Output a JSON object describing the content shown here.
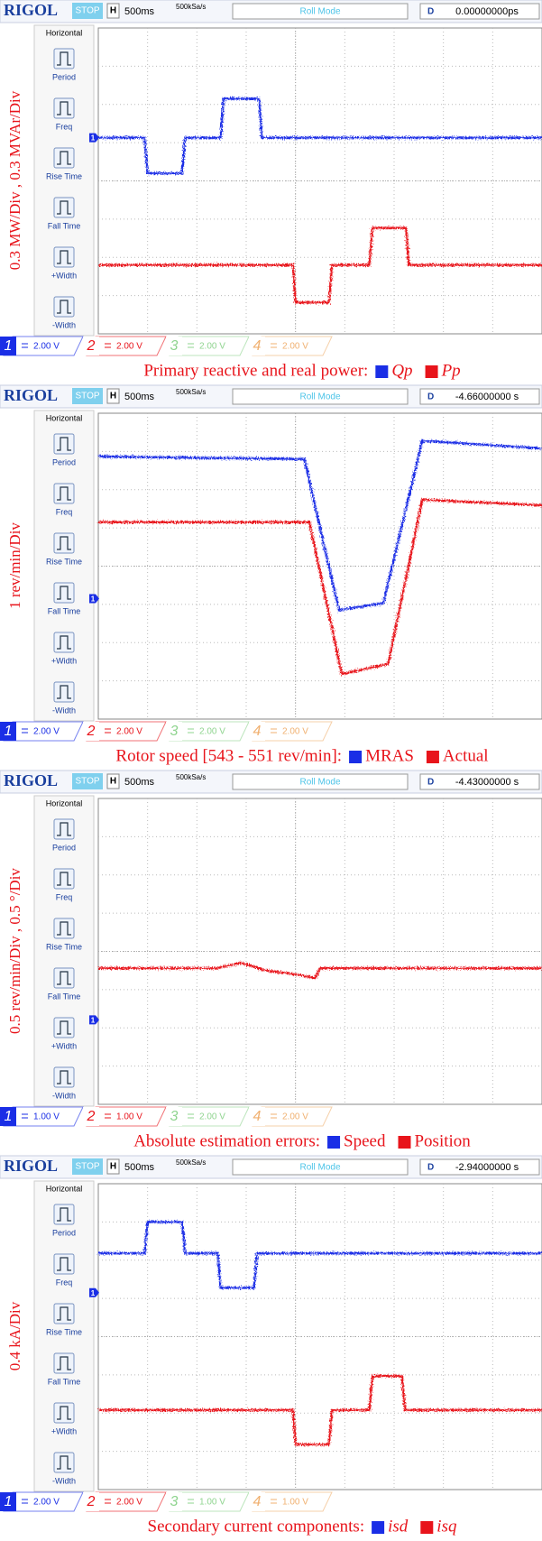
{
  "scope": {
    "brand": "RIGOL",
    "status": "STOP",
    "h_label": "H",
    "timebase": "500ms",
    "sample_rate": "500kSa/s",
    "mode": "Roll Mode",
    "d_label": "D"
  },
  "sidebar": {
    "title": "Horizontal",
    "buttons": [
      "Period",
      "Freq",
      "Rise Time",
      "Fall Time",
      "+Width",
      "-Width"
    ]
  },
  "chart_data": [
    {
      "type": "line",
      "y_label": "0.3 MW/Div , 0.3 MVAr/Div",
      "caption": "Primary reactive and real power:",
      "legend_italic": true,
      "delay": "0.00000000ps",
      "xlim": [
        0,
        9
      ],
      "ylim": [
        -4,
        4
      ],
      "ch1_offset": 1.13,
      "channels": [
        {
          "number": "1",
          "scale": "2.00 V",
          "color": "#1a2ee6"
        },
        {
          "number": "2",
          "scale": "2.00 V",
          "color": "#e8141b"
        },
        {
          "number": "3",
          "scale": "2.00 V",
          "color": "#8fd48f"
        },
        {
          "number": "4",
          "scale": "2.00 V",
          "color": "#f0b070"
        }
      ],
      "series": [
        {
          "name": "Qp",
          "color": "#1a2ee6",
          "x": [
            0,
            0.94,
            1.0,
            1.7,
            1.76,
            2.48,
            2.54,
            3.26,
            3.32,
            9
          ],
          "values": [
            1.13,
            1.13,
            0.2,
            0.2,
            1.13,
            1.13,
            2.15,
            2.15,
            1.13,
            1.13
          ]
        },
        {
          "name": "Pp",
          "color": "#e8141b",
          "x": [
            0,
            3.95,
            4.0,
            4.68,
            4.74,
            5.5,
            5.56,
            6.24,
            6.3,
            9
          ],
          "values": [
            -2.2,
            -2.2,
            -3.18,
            -3.18,
            -2.2,
            -2.2,
            -1.23,
            -1.23,
            -2.2,
            -2.2
          ]
        }
      ]
    },
    {
      "type": "line",
      "y_label": "1 rev/min/Div",
      "caption": "Rotor speed [543 - 551 rev/min]:",
      "legend_italic": false,
      "delay": "-4.66000000 s",
      "xlim": [
        0,
        9
      ],
      "ylim": [
        -4,
        4
      ],
      "ch1_offset": -0.85,
      "channels": [
        {
          "number": "1",
          "scale": "2.00 V",
          "color": "#1a2ee6"
        },
        {
          "number": "2",
          "scale": "2.00 V",
          "color": "#e8141b"
        },
        {
          "number": "3",
          "scale": "2.00 V",
          "color": "#8fd48f"
        },
        {
          "number": "4",
          "scale": "2.00 V",
          "color": "#f0b070"
        }
      ],
      "series": [
        {
          "name": "MRAS",
          "color": "#1a2ee6",
          "x": [
            0,
            4.18,
            4.88,
            5.78,
            6.57,
            9
          ],
          "values": [
            2.87,
            2.8,
            -1.15,
            -0.97,
            3.28,
            3.08
          ]
        },
        {
          "name": "Actual",
          "color": "#e8141b",
          "x": [
            0,
            4.28,
            4.94,
            5.88,
            6.57,
            9
          ],
          "values": [
            1.15,
            1.15,
            -2.82,
            -2.56,
            1.74,
            1.59
          ]
        }
      ]
    },
    {
      "type": "line",
      "y_label": "0.5 rev/min/Div , 0.5 °/Div",
      "caption": "Absolute estimation errors:",
      "legend_italic": false,
      "delay": "-4.43000000 s",
      "xlim": [
        0,
        9
      ],
      "ylim": [
        -4,
        4
      ],
      "ch1_offset": -1.79,
      "channels": [
        {
          "number": "1",
          "scale": "1.00 V",
          "color": "#1a2ee6"
        },
        {
          "number": "2",
          "scale": "1.00 V",
          "color": "#e8141b"
        },
        {
          "number": "3",
          "scale": "2.00 V",
          "color": "#8fd48f"
        },
        {
          "number": "4",
          "scale": "2.00 V",
          "color": "#f0b070"
        }
      ],
      "series": [
        {
          "name": "Speed",
          "color": "#1a2ee6",
          "x": [
            0,
            9
          ],
          "values": [
            1.49,
            1.49
          ]
        },
        {
          "name": "Position",
          "color": "#e8141b",
          "x": [
            0,
            2.4,
            2.9,
            3.4,
            4.1,
            4.4,
            4.5,
            9
          ],
          "values": [
            -0.44,
            -0.44,
            -0.3,
            -0.5,
            -0.62,
            -0.7,
            -0.44,
            -0.44
          ]
        }
      ]
    },
    {
      "type": "line",
      "y_label": "0.4 kA/Div",
      "caption": "Secondary current components:",
      "legend_italic": true,
      "delay": "-2.94000000 s",
      "xlim": [
        0,
        9
      ],
      "ylim": [
        -4,
        4
      ],
      "ch1_offset": 1.15,
      "channels": [
        {
          "number": "1",
          "scale": "2.00 V",
          "color": "#1a2ee6"
        },
        {
          "number": "2",
          "scale": "2.00 V",
          "color": "#e8141b"
        },
        {
          "number": "3",
          "scale": "1.00 V",
          "color": "#8fd48f"
        },
        {
          "number": "4",
          "scale": "1.00 V",
          "color": "#f0b070"
        }
      ],
      "series": [
        {
          "name": "isd",
          "color": "#1a2ee6",
          "x": [
            0,
            0.94,
            1.0,
            1.7,
            1.76,
            2.42,
            2.48,
            3.16,
            3.22,
            9
          ],
          "values": [
            2.18,
            2.18,
            3.0,
            3.0,
            2.18,
            2.18,
            1.28,
            1.28,
            2.18,
            2.18
          ]
        },
        {
          "name": "isq",
          "color": "#e8141b",
          "x": [
            0,
            3.95,
            4.0,
            4.68,
            4.74,
            5.5,
            5.56,
            6.16,
            6.22,
            9
          ],
          "values": [
            -1.92,
            -1.92,
            -2.82,
            -2.82,
            -1.92,
            -1.92,
            -1.03,
            -1.03,
            -1.92,
            -1.92
          ]
        }
      ]
    }
  ]
}
